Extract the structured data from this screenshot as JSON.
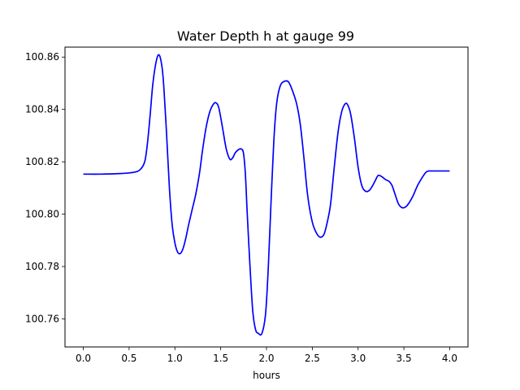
{
  "chart_data": {
    "type": "line",
    "title": "Water Depth h at gauge 99",
    "xlabel": "hours",
    "ylabel": "",
    "xlim": [
      -0.2,
      4.2
    ],
    "ylim": [
      100.7493,
      100.8638
    ],
    "x_ticks": [
      0.0,
      0.5,
      1.0,
      1.5,
      2.0,
      2.5,
      3.0,
      3.5,
      4.0
    ],
    "x_tick_labels": [
      "0.0",
      "0.5",
      "1.0",
      "1.5",
      "2.0",
      "2.5",
      "3.0",
      "3.5",
      "4.0"
    ],
    "y_ticks": [
      100.76,
      100.78,
      100.8,
      100.82,
      100.84,
      100.86
    ],
    "y_tick_labels": [
      "100.76",
      "100.78",
      "100.80",
      "100.82",
      "100.84",
      "100.86"
    ],
    "grid": false,
    "legend": "none",
    "series": [
      {
        "color": "#0000ff",
        "points": [
          [
            0.0,
            100.8153
          ],
          [
            0.2,
            100.8153
          ],
          [
            0.4,
            100.8155
          ],
          [
            0.55,
            100.816
          ],
          [
            0.62,
            100.817
          ],
          [
            0.67,
            100.82
          ],
          [
            0.7,
            100.827
          ],
          [
            0.73,
            100.838
          ],
          [
            0.76,
            100.85
          ],
          [
            0.8,
            100.859
          ],
          [
            0.83,
            100.8607
          ],
          [
            0.86,
            100.856
          ],
          [
            0.88,
            100.848
          ],
          [
            0.91,
            100.83
          ],
          [
            0.94,
            100.81
          ],
          [
            0.97,
            100.796
          ],
          [
            1.0,
            100.789
          ],
          [
            1.03,
            100.7855
          ],
          [
            1.06,
            100.785
          ],
          [
            1.09,
            100.787
          ],
          [
            1.12,
            100.791
          ],
          [
            1.15,
            100.796
          ],
          [
            1.19,
            100.802
          ],
          [
            1.23,
            100.808
          ],
          [
            1.27,
            100.816
          ],
          [
            1.3,
            100.824
          ],
          [
            1.34,
            100.833
          ],
          [
            1.38,
            100.839
          ],
          [
            1.42,
            100.842
          ],
          [
            1.45,
            100.8425
          ],
          [
            1.48,
            100.8405
          ],
          [
            1.52,
            100.833
          ],
          [
            1.56,
            100.825
          ],
          [
            1.6,
            100.821
          ],
          [
            1.63,
            100.8215
          ],
          [
            1.66,
            100.8235
          ],
          [
            1.7,
            100.8248
          ],
          [
            1.73,
            100.8248
          ],
          [
            1.75,
            100.823
          ],
          [
            1.77,
            100.815
          ],
          [
            1.79,
            100.8
          ],
          [
            1.82,
            100.78
          ],
          [
            1.85,
            100.763
          ],
          [
            1.88,
            100.756
          ],
          [
            1.91,
            100.7545
          ],
          [
            1.95,
            100.7545
          ],
          [
            1.99,
            100.762
          ],
          [
            2.02,
            100.78
          ],
          [
            2.05,
            100.805
          ],
          [
            2.08,
            100.828
          ],
          [
            2.11,
            100.842
          ],
          [
            2.15,
            100.849
          ],
          [
            2.2,
            100.8508
          ],
          [
            2.24,
            100.8505
          ],
          [
            2.28,
            100.8475
          ],
          [
            2.33,
            100.842
          ],
          [
            2.37,
            100.834
          ],
          [
            2.41,
            100.821
          ],
          [
            2.45,
            100.807
          ],
          [
            2.5,
            100.797
          ],
          [
            2.55,
            100.7925
          ],
          [
            2.59,
            100.7912
          ],
          [
            2.63,
            100.7925
          ],
          [
            2.67,
            100.798
          ],
          [
            2.7,
            100.804
          ],
          [
            2.74,
            100.818
          ],
          [
            2.78,
            100.831
          ],
          [
            2.82,
            100.839
          ],
          [
            2.86,
            100.8422
          ],
          [
            2.89,
            100.8415
          ],
          [
            2.92,
            100.838
          ],
          [
            2.96,
            100.829
          ],
          [
            3.0,
            100.818
          ],
          [
            3.04,
            100.811
          ],
          [
            3.08,
            100.8088
          ],
          [
            3.12,
            100.809
          ],
          [
            3.16,
            100.811
          ],
          [
            3.19,
            100.813
          ],
          [
            3.22,
            100.8148
          ],
          [
            3.26,
            100.8143
          ],
          [
            3.3,
            100.8132
          ],
          [
            3.34,
            100.8125
          ],
          [
            3.37,
            100.811
          ],
          [
            3.4,
            100.808
          ],
          [
            3.44,
            100.804
          ],
          [
            3.48,
            100.8025
          ],
          [
            3.52,
            100.8028
          ],
          [
            3.56,
            100.8045
          ],
          [
            3.6,
            100.807
          ],
          [
            3.65,
            100.811
          ],
          [
            3.7,
            100.814
          ],
          [
            3.74,
            100.816
          ],
          [
            3.77,
            100.8165
          ],
          [
            3.8,
            100.8165
          ],
          [
            3.9,
            100.8165
          ],
          [
            4.0,
            100.8165
          ]
        ]
      }
    ]
  }
}
